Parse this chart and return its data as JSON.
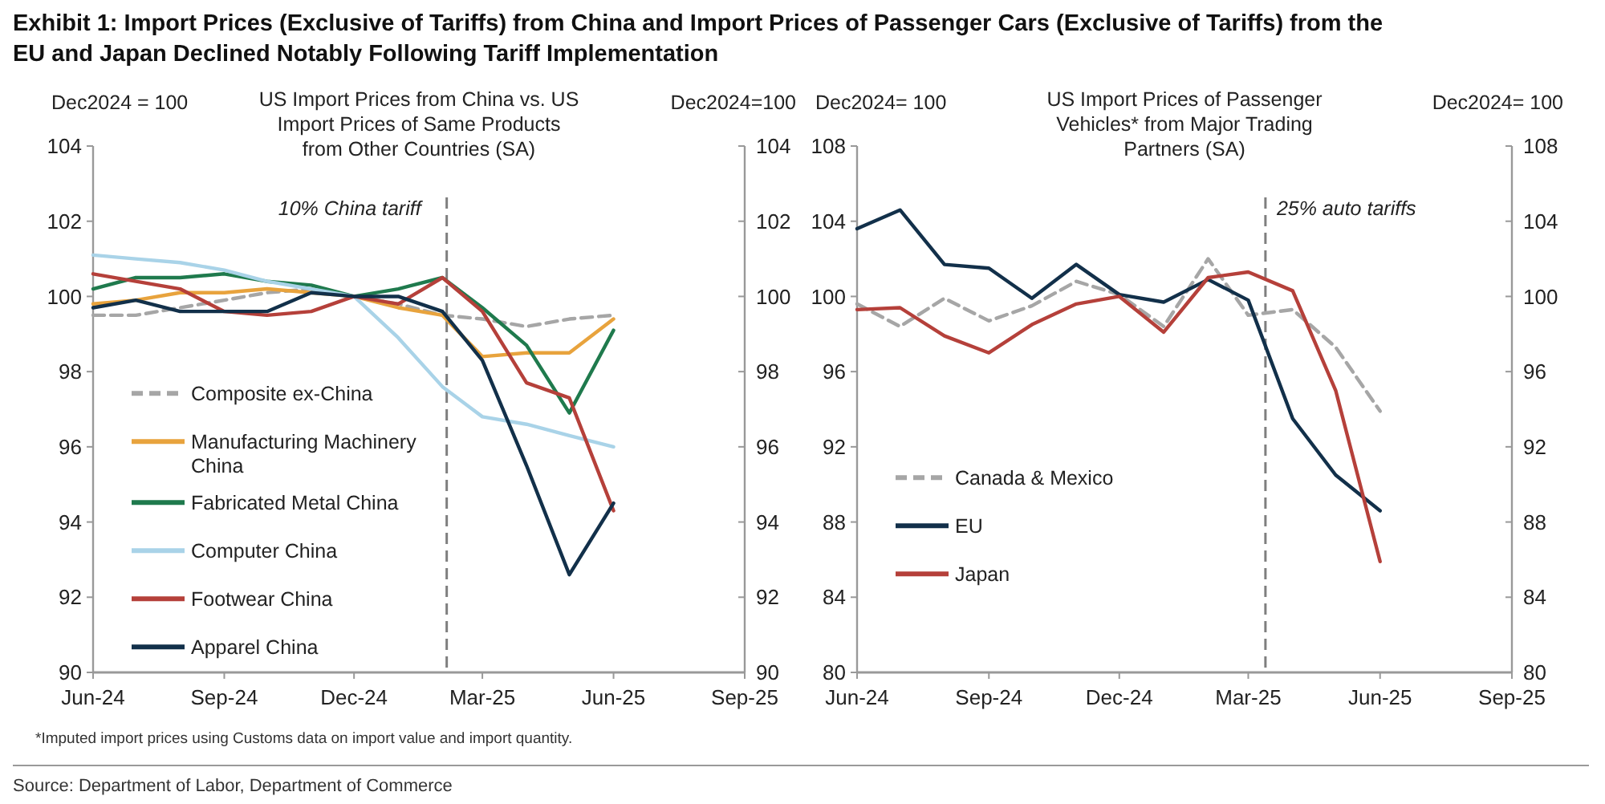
{
  "chart_data": [
    {
      "type": "line",
      "title": "Exhibit 1: Import Prices (Exclusive of Tariffs) from China and Import Prices of Passenger Cars (Exclusive of Tariffs) from the EU and Japan Declined Notably Following Tariff Implementation",
      "subtitle": "US Import Prices from China vs. US Import Prices of Same Products from Other Countries (SA)",
      "ylabel": "Dec2024 = 100",
      "y2label": "Dec2024=100",
      "x": [
        "2024-06",
        "2024-07",
        "2024-08",
        "2024-09",
        "2024-10",
        "2024-11",
        "2024-12",
        "2025-01",
        "2025-02",
        "2025-03",
        "2025-04",
        "2025-05",
        "2025-06"
      ],
      "xlim": [
        "2024-06",
        "2025-09"
      ],
      "xticks": [
        {
          "value": "2024-06",
          "label": "Jun-24"
        },
        {
          "value": "2024-09",
          "label": "Sep-24"
        },
        {
          "value": "2024-12",
          "label": "Dec-24"
        },
        {
          "value": "2025-03",
          "label": "Mar-25"
        },
        {
          "value": "2025-06",
          "label": "Jun-25"
        },
        {
          "value": "2025-09",
          "label": "Sep-25"
        }
      ],
      "ylim": [
        90,
        104
      ],
      "yticks": [
        90,
        92,
        94,
        96,
        98,
        100,
        102,
        104
      ],
      "y2lim": [
        90,
        104
      ],
      "y2ticks": [
        90,
        92,
        94,
        96,
        98,
        100,
        102,
        104
      ],
      "legend": "bottom left",
      "ref_lines": [
        {
          "axis": "x",
          "value": "2025-02-04",
          "label": "10% China tariff",
          "color": "#7f7f7f",
          "line_style": "dashed"
        }
      ],
      "series": [
        {
          "name": "Composite ex-China",
          "color": "#a6a6a6",
          "line_style": "dashed",
          "values": [
            99.5,
            99.5,
            99.7,
            99.9,
            100.1,
            100.2,
            100,
            99.8,
            99.5,
            99.4,
            99.2,
            99.4,
            99.5
          ]
        },
        {
          "name": "Manufacturing Machinery China",
          "color": "#e8a33d",
          "values": [
            99.8,
            99.9,
            100.1,
            100.1,
            100.2,
            100.1,
            100,
            99.7,
            99.5,
            98.4,
            98.5,
            98.5,
            99.4
          ]
        },
        {
          "name": "Fabricated Metal China",
          "color": "#1f7a4d",
          "values": [
            100.2,
            100.5,
            100.5,
            100.6,
            100.4,
            100.3,
            100,
            100.2,
            100.5,
            99.7,
            98.7,
            96.9,
            99.1
          ]
        },
        {
          "name": "Computer China",
          "color": "#a9d3e8",
          "values": [
            101.1,
            101.0,
            100.9,
            100.7,
            100.4,
            100.2,
            100,
            98.9,
            97.6,
            96.8,
            96.6,
            96.3,
            96.0
          ]
        },
        {
          "name": "Footwear China",
          "color": "#b5403a",
          "values": [
            100.6,
            100.4,
            100.2,
            99.6,
            99.5,
            99.6,
            100,
            99.8,
            100.5,
            99.6,
            97.7,
            97.3,
            94.3
          ]
        },
        {
          "name": "Apparel China",
          "color": "#12304a",
          "values": [
            99.7,
            99.9,
            99.6,
            99.6,
            99.6,
            100.1,
            100,
            100.0,
            99.6,
            98.3,
            95.5,
            92.6,
            94.5
          ]
        }
      ]
    },
    {
      "type": "line",
      "subtitle": "US Import Prices of Passenger Vehicles* from Major Trading Partners (SA)",
      "ylabel": "Dec2024= 100",
      "y2label": "Dec2024= 100",
      "x": [
        "2024-06",
        "2024-07",
        "2024-08",
        "2024-09",
        "2024-10",
        "2024-11",
        "2024-12",
        "2025-01",
        "2025-02",
        "2025-03",
        "2025-04",
        "2025-05",
        "2025-06"
      ],
      "xlim": [
        "2024-06",
        "2025-09"
      ],
      "xticks": [
        {
          "value": "2024-06",
          "label": "Jun-24"
        },
        {
          "value": "2024-09",
          "label": "Sep-24"
        },
        {
          "value": "2024-12",
          "label": "Dec-24"
        },
        {
          "value": "2025-03",
          "label": "Mar-25"
        },
        {
          "value": "2025-06",
          "label": "Jun-25"
        },
        {
          "value": "2025-09",
          "label": "Sep-25"
        }
      ],
      "ylim": [
        80,
        108
      ],
      "yticks": [
        80,
        84,
        88,
        92,
        96,
        100,
        104,
        108
      ],
      "y2lim": [
        80,
        108
      ],
      "y2ticks": [
        80,
        84,
        88,
        92,
        96,
        100,
        104,
        108
      ],
      "legend": "bottom left",
      "ref_lines": [
        {
          "axis": "x",
          "value": "2025-03-13",
          "label": "25% auto tariffs",
          "color": "#7f7f7f",
          "line_style": "dashed"
        }
      ],
      "annotations": [
        "*Imputed import prices using Customs data on import value and import quantity.",
        "Source: Department of Labor, Department of Commerce"
      ],
      "series": [
        {
          "name": "Canada & Mexico",
          "color": "#a6a6a6",
          "line_style": "dashed",
          "values": [
            99.6,
            98.4,
            99.9,
            98.7,
            99.5,
            100.8,
            100.1,
            98.4,
            102.0,
            99.0,
            99.3,
            97.3,
            93.9
          ]
        },
        {
          "name": "EU",
          "color": "#12304a",
          "values": [
            103.6,
            104.6,
            101.7,
            101.5,
            99.9,
            101.7,
            100.1,
            99.7,
            100.9,
            99.8,
            93.5,
            90.5,
            88.6
          ]
        },
        {
          "name": "Japan",
          "color": "#b5403a",
          "values": [
            99.3,
            99.4,
            97.9,
            97.0,
            98.5,
            99.6,
            100,
            98.1,
            101.0,
            101.3,
            100.3,
            95.0,
            85.9
          ]
        }
      ]
    }
  ]
}
